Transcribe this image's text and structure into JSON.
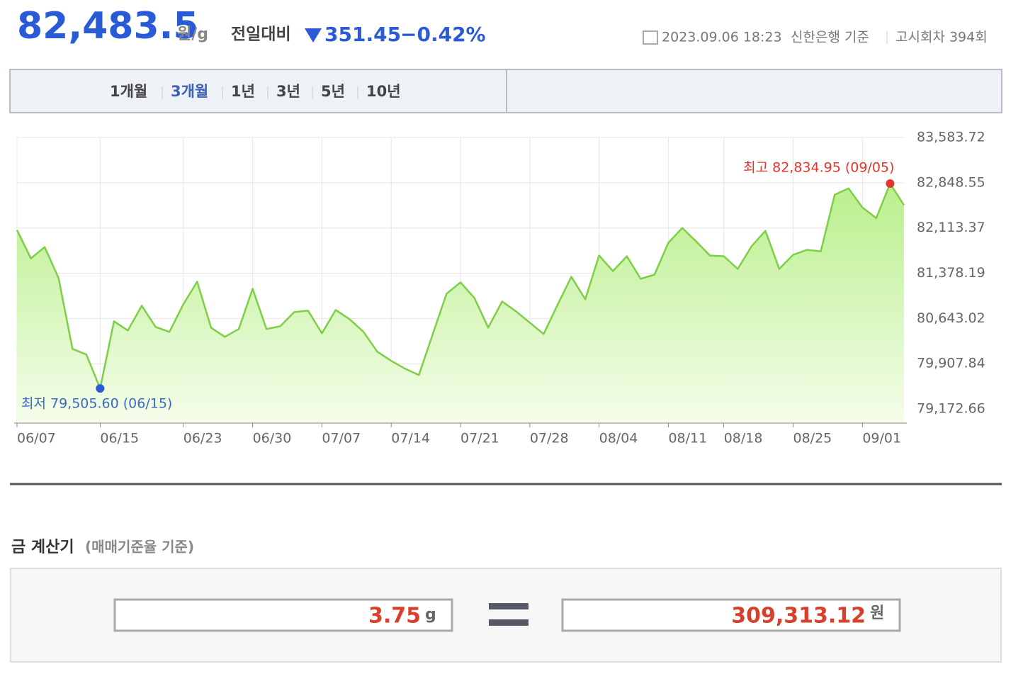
{
  "header": {
    "price": "82,483.5",
    "unit": "원/g",
    "change_label": "전일대비",
    "change": "351.45",
    "change_percent": "−0.42%",
    "datetime": "2023.09.06 18:23",
    "source": "신한은행 기준",
    "round": "고시회차 394회"
  },
  "tabs": [
    "1개월",
    "3개월",
    "1년",
    "3년",
    "5년",
    "10년"
  ],
  "chart_data": {
    "type": "line",
    "color": "#7ccf46",
    "grid": true,
    "categories": [
      "06/07",
      null,
      null,
      null,
      null,
      null,
      "06/15",
      null,
      null,
      null,
      null,
      null,
      "06/23",
      null,
      null,
      null,
      null,
      "06/30",
      null,
      null,
      null,
      null,
      "07/07",
      null,
      null,
      null,
      null,
      "07/14",
      null,
      null,
      null,
      null,
      "07/21",
      null,
      null,
      null,
      null,
      "07/28",
      null,
      null,
      null,
      null,
      "08/04",
      null,
      null,
      null,
      null,
      "08/11",
      null,
      null,
      null,
      "08/18",
      null,
      null,
      null,
      null,
      "08/25",
      null,
      null,
      null,
      null,
      "09/01",
      null,
      null,
      null
    ],
    "values": [
      82078.9,
      81619.4,
      81803.2,
      81297.8,
      80149.1,
      80057.2,
      79505.6,
      80597.1,
      80447.7,
      80849.8,
      80505.2,
      80424.8,
      80872.8,
      81240.4,
      80493.7,
      80344.4,
      80470.7,
      81125.5,
      80470.7,
      80516.7,
      80746.4,
      80769.4,
      80401.8,
      80780.9,
      80631.5,
      80424.8,
      80103.1,
      79953.8,
      79827.5,
      79724.1,
      80390.3,
      81045.1,
      81228.9,
      80976.2,
      80493.7,
      80918.7,
      80757.9,
      80574.1,
      80390.3,
      80861.3,
      81320.8,
      80953.2,
      81665.4,
      81412.7,
      81653.9,
      81286.3,
      81355.2,
      81872.1,
      82113.4,
      81895.1,
      81665.4,
      81653.9,
      81447.1,
      81814.7,
      82067.4,
      81447.1,
      81676.9,
      81757.3,
      81734.3,
      82653.3,
      82756.6,
      82446.5,
      82274.2,
      82834.95,
      82483.5
    ],
    "ylim": [
      78942.9,
      83583.72
    ],
    "yticks": [
      {
        "value": 79172.66,
        "label": "79,172.66"
      },
      {
        "value": 79907.84,
        "label": "79,907.84"
      },
      {
        "value": 80643.02,
        "label": "80,643.02"
      },
      {
        "value": 81378.19,
        "label": "81,378.19"
      },
      {
        "value": 82113.37,
        "label": "82,113.37"
      },
      {
        "value": 82848.55,
        "label": "82,848.55"
      },
      {
        "value": 83583.72,
        "label": "83,583.72"
      }
    ],
    "annotations": {
      "high": "최고 82,834.95 (09/05)",
      "low": "최저 79,505.60 (06/15)"
    }
  },
  "calculator": {
    "title": "금 계산기",
    "subtitle": "(매매기준율 기준)",
    "input": "3.75",
    "input_unit": "g",
    "result": "309,313.12",
    "result_unit": "원"
  }
}
